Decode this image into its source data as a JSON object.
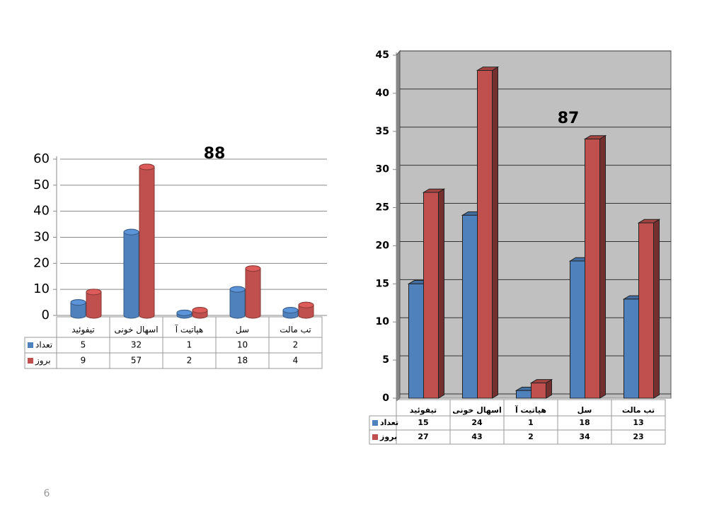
{
  "chart_data": [
    {
      "type": "bar",
      "title": "88",
      "bar_shape": "cylinder",
      "grid": true,
      "categories": [
        "تیفوئید",
        "اسهال خونی",
        "هپاتیت آ",
        "سل",
        "تب مالت"
      ],
      "series": [
        {
          "name": "تعداد",
          "color": "#4f81bd",
          "values": [
            5,
            32,
            1,
            10,
            2
          ]
        },
        {
          "name": "بروز",
          "color": "#c0504d",
          "values": [
            9,
            57,
            2,
            18,
            4
          ]
        }
      ],
      "ylim": [
        0,
        60
      ],
      "yticks": [
        0,
        10,
        20,
        30,
        40,
        50,
        60
      ]
    },
    {
      "type": "bar",
      "title": "87",
      "bar_shape": "box",
      "grid": true,
      "plot_background": "#c0c0c0",
      "categories": [
        "تیفوئید",
        "اسهال خونی",
        "هپاتیت آ",
        "سل",
        "تب مالت"
      ],
      "series": [
        {
          "name": "تعداد",
          "color": "#4f81bd",
          "values": [
            15,
            24,
            1,
            18,
            13
          ]
        },
        {
          "name": "بروز",
          "color": "#c0504d",
          "values": [
            27,
            43,
            2,
            34,
            23
          ]
        }
      ],
      "ylim": [
        0,
        45
      ],
      "yticks": [
        0,
        5,
        10,
        15,
        20,
        25,
        30,
        35,
        40,
        45
      ]
    }
  ],
  "page_number": "6"
}
